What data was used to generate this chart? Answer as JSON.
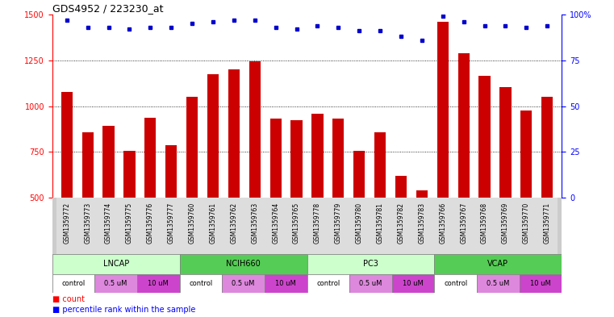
{
  "title": "GDS4952 / 223230_at",
  "samples": [
    "GSM1359772",
    "GSM1359773",
    "GSM1359774",
    "GSM1359775",
    "GSM1359776",
    "GSM1359777",
    "GSM1359760",
    "GSM1359761",
    "GSM1359762",
    "GSM1359763",
    "GSM1359764",
    "GSM1359765",
    "GSM1359778",
    "GSM1359779",
    "GSM1359780",
    "GSM1359781",
    "GSM1359782",
    "GSM1359783",
    "GSM1359766",
    "GSM1359767",
    "GSM1359768",
    "GSM1359769",
    "GSM1359770",
    "GSM1359771"
  ],
  "counts": [
    1075,
    855,
    890,
    755,
    935,
    785,
    1050,
    1175,
    1200,
    1245,
    930,
    925,
    960,
    930,
    755,
    855,
    620,
    540,
    1460,
    1290,
    1165,
    1105,
    975,
    1050
  ],
  "percentile_ranks": [
    97,
    93,
    93,
    92,
    93,
    93,
    95,
    96,
    97,
    97,
    93,
    92,
    94,
    93,
    91,
    91,
    88,
    86,
    99,
    96,
    94,
    94,
    93,
    94
  ],
  "cell_lines": [
    {
      "name": "LNCAP",
      "start": 0,
      "end": 6,
      "light": true
    },
    {
      "name": "NCIH660",
      "start": 6,
      "end": 12,
      "light": false
    },
    {
      "name": "PC3",
      "start": 12,
      "end": 18,
      "light": true
    },
    {
      "name": "VCAP",
      "start": 18,
      "end": 24,
      "light": false
    }
  ],
  "doses": [
    {
      "name": "control",
      "start": 0,
      "end": 2
    },
    {
      "name": "0.5 uM",
      "start": 2,
      "end": 4
    },
    {
      "name": "10 uM",
      "start": 4,
      "end": 6
    },
    {
      "name": "control",
      "start": 6,
      "end": 8
    },
    {
      "name": "0.5 uM",
      "start": 8,
      "end": 10
    },
    {
      "name": "10 uM",
      "start": 10,
      "end": 12
    },
    {
      "name": "control",
      "start": 12,
      "end": 14
    },
    {
      "name": "0.5 uM",
      "start": 14,
      "end": 16
    },
    {
      "name": "10 uM",
      "start": 16,
      "end": 18
    },
    {
      "name": "control",
      "start": 18,
      "end": 20
    },
    {
      "name": "0.5 uM",
      "start": 20,
      "end": 22
    },
    {
      "name": "10 uM",
      "start": 22,
      "end": 24
    }
  ],
  "bar_color": "#cc0000",
  "dot_color": "#0000cc",
  "ylim_left": [
    500,
    1500
  ],
  "ylim_right": [
    0,
    100
  ],
  "yticks_left": [
    500,
    750,
    1000,
    1250,
    1500
  ],
  "yticks_right": [
    0,
    25,
    50,
    75,
    100
  ],
  "grid_values": [
    750,
    1000,
    1250
  ],
  "cell_light_color": "#ccffcc",
  "cell_dark_color": "#55cc55",
  "dose_white_color": "#ffffff",
  "dose_light_color": "#dd88dd",
  "dose_dark_color": "#cc44cc",
  "label_row_bg": "#cccccc",
  "plot_bg_color": "#ffffff",
  "label_fontsize": 7,
  "tick_fontsize": 7,
  "sample_fontsize": 5.5,
  "title_fontsize": 9
}
